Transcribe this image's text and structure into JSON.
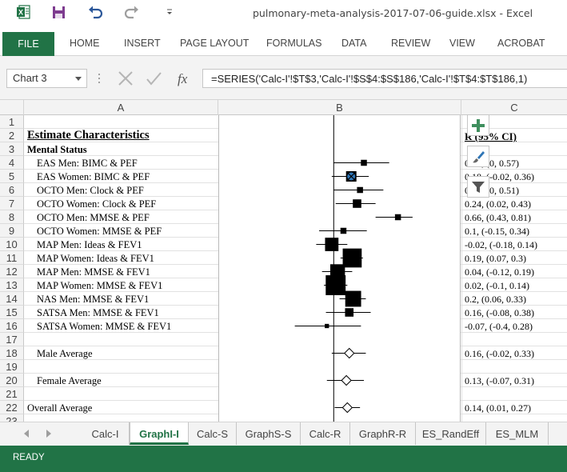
{
  "titlebar": {
    "title": "pulmonary-meta-analysis-2017-07-06-guide.xlsx - Excel",
    "quick_access": [
      "excel-logo-icon",
      "save-icon",
      "undo-icon",
      "redo-icon",
      "customize-dropdown-icon"
    ]
  },
  "ribbon": {
    "file": "FILE",
    "tabs": [
      "HOME",
      "INSERT",
      "PAGE LAYOUT",
      "FORMULAS",
      "DATA",
      "REVIEW",
      "VIEW",
      "ACROBAT"
    ]
  },
  "formula_bar": {
    "name_box": "Chart 3",
    "formula": "=SERIES('Calc-I'!$T$3,'Calc-I'!$S$4:$S$186,'Calc-I'!$T$4:$T$186,1)"
  },
  "columns": [
    "A",
    "B",
    "C"
  ],
  "rows": [
    {
      "n": "1",
      "a": "",
      "c": ""
    },
    {
      "n": "2",
      "a": "Estimate Characteristics",
      "c": "R (95% CI)",
      "style": "title"
    },
    {
      "n": "3",
      "a": "Mental Status",
      "c": "",
      "style": "bold"
    },
    {
      "n": "4",
      "a": "EAS Men: BIMC & PEF",
      "c": "0.31, (0, 0.57)"
    },
    {
      "n": "5",
      "a": "EAS Women: BIMC & PEF",
      "c": "0.18, (-0.02, 0.36)"
    },
    {
      "n": "6",
      "a": "OCTO Men: Clock & PEF",
      "c": "0.27, (0, 0.51)"
    },
    {
      "n": "7",
      "a": "OCTO Women: Clock & PEF",
      "c": "0.24, (0.02, 0.43)"
    },
    {
      "n": "8",
      "a": "OCTO Men: MMSE & PEF",
      "c": "0.66, (0.43, 0.81)"
    },
    {
      "n": "9",
      "a": "OCTO Women: MMSE & PEF",
      "c": "0.1, (-0.15, 0.34)"
    },
    {
      "n": "10",
      "a": "MAP Men: Ideas & FEV1",
      "c": "-0.02, (-0.18, 0.14)"
    },
    {
      "n": "11",
      "a": "MAP Women: Ideas & FEV1",
      "c": "0.19, (0.07, 0.3)"
    },
    {
      "n": "12",
      "a": "MAP Men: MMSE & FEV1",
      "c": "0.04, (-0.12, 0.19)"
    },
    {
      "n": "13",
      "a": "MAP Women: MMSE & FEV1",
      "c": "0.02, (-0.1, 0.14)"
    },
    {
      "n": "14",
      "a": "NAS Men: MMSE & FEV1",
      "c": "0.2, (0.06, 0.33)"
    },
    {
      "n": "15",
      "a": "SATSA Men: MMSE & FEV1",
      "c": "0.16, (-0.08, 0.38)"
    },
    {
      "n": "16",
      "a": "SATSA Women: MMSE & FEV1",
      "c": "-0.07, (-0.4, 0.28)"
    },
    {
      "n": "17",
      "a": "",
      "c": ""
    },
    {
      "n": "18",
      "a": "Male Average",
      "c": "0.16, (-0.02, 0.33)"
    },
    {
      "n": "19",
      "a": "",
      "c": ""
    },
    {
      "n": "20",
      "a": "Female Average",
      "c": "0.13, (-0.07, 0.31)"
    },
    {
      "n": "21",
      "a": "",
      "c": ""
    },
    {
      "n": "22",
      "a": "Overall Average",
      "c": "0.14, (0.01, 0.27)",
      "style": "plain"
    },
    {
      "n": "23",
      "a": "",
      "c": ""
    }
  ],
  "chart_data": {
    "type": "scatter",
    "title": "",
    "xlabel": "",
    "ylabel": "",
    "reference_x": 0,
    "xlim": [
      -0.52,
      1.0
    ],
    "grid": false,
    "series": [
      {
        "marker": "square",
        "points": [
          {
            "y": 0.31,
            "lo": 0.0,
            "hi": 0.57,
            "weight": 1
          },
          {
            "y": 0.18,
            "lo": -0.02,
            "hi": 0.36,
            "weight": 3
          },
          {
            "y": 0.27,
            "lo": 0.0,
            "hi": 0.51,
            "weight": 1
          },
          {
            "y": 0.24,
            "lo": 0.02,
            "hi": 0.43,
            "weight": 2
          },
          {
            "y": 0.66,
            "lo": 0.43,
            "hi": 0.81,
            "weight": 1
          },
          {
            "y": 0.1,
            "lo": -0.15,
            "hi": 0.34,
            "weight": 1
          },
          {
            "y": -0.02,
            "lo": -0.18,
            "hi": 0.14,
            "weight": 5
          },
          {
            "y": 0.19,
            "lo": 0.07,
            "hi": 0.3,
            "weight": 10
          },
          {
            "y": 0.04,
            "lo": -0.12,
            "hi": 0.19,
            "weight": 6
          },
          {
            "y": 0.02,
            "lo": -0.1,
            "hi": 0.14,
            "weight": 11
          },
          {
            "y": 0.2,
            "lo": 0.06,
            "hi": 0.33,
            "weight": 7
          },
          {
            "y": 0.16,
            "lo": -0.08,
            "hi": 0.38,
            "weight": 2
          },
          {
            "y": -0.07,
            "lo": -0.4,
            "hi": 0.28,
            "weight": 0.5
          }
        ]
      },
      {
        "marker": "diamond",
        "points": [
          {
            "y": 0.16,
            "lo": -0.02,
            "hi": 0.33
          },
          {
            "y": 0.13,
            "lo": -0.07,
            "hi": 0.31
          },
          {
            "y": 0.14,
            "lo": 0.01,
            "hi": 0.27
          }
        ]
      }
    ]
  },
  "chart_tools": [
    "chart-elements-plus-icon",
    "chart-styles-brush-icon",
    "chart-filters-funnel-icon"
  ],
  "sheet_tabs": [
    "Calc-I",
    "GraphI-I",
    "Calc-S",
    "GraphS-S",
    "Calc-R",
    "GraphR-R",
    "ES_RandEff",
    "ES_MLM"
  ],
  "active_sheet": "GraphI-I",
  "status": "READY",
  "colors": {
    "excel_green": "#217346",
    "selected_marker": "#2e75b6"
  }
}
